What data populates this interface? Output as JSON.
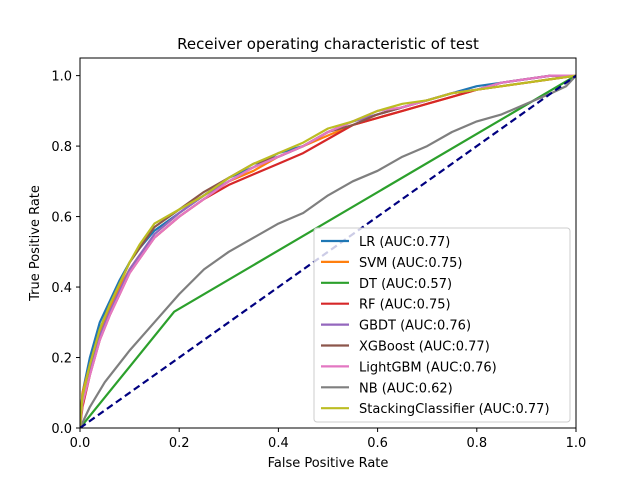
{
  "chart_data": {
    "type": "line",
    "title": "Receiver operating characteristic of test",
    "xlabel": "False Positive Rate",
    "ylabel": "True Positive Rate",
    "xlim": [
      0,
      1
    ],
    "ylim": [
      0,
      1.05
    ],
    "x_ticks": [
      "0.0",
      "0.2",
      "0.4",
      "0.6",
      "0.8",
      "1.0"
    ],
    "y_ticks": [
      "0.0",
      "0.2",
      "0.4",
      "0.6",
      "0.8",
      "1.0"
    ],
    "grid": false,
    "legend_position": "lower-right",
    "baseline": {
      "x": [
        0,
        1
      ],
      "y": [
        0,
        1
      ],
      "color": "#000080",
      "style": "dashed"
    },
    "series": [
      {
        "name": "LR (AUC:0.77)",
        "color": "#1f77b4",
        "x": [
          0,
          0.005,
          0.02,
          0.04,
          0.06,
          0.08,
          0.1,
          0.12,
          0.15,
          0.2,
          0.25,
          0.3,
          0.35,
          0.4,
          0.45,
          0.5,
          0.55,
          0.6,
          0.65,
          0.7,
          0.75,
          0.8,
          0.85,
          0.9,
          0.95,
          1.0
        ],
        "y": [
          0,
          0.1,
          0.2,
          0.3,
          0.36,
          0.42,
          0.47,
          0.51,
          0.56,
          0.61,
          0.66,
          0.71,
          0.74,
          0.78,
          0.8,
          0.84,
          0.87,
          0.89,
          0.91,
          0.93,
          0.95,
          0.97,
          0.98,
          0.99,
          1.0,
          1.0
        ]
      },
      {
        "name": "SVM (AUC:0.75)",
        "color": "#ff7f0e",
        "x": [
          0,
          0.005,
          0.02,
          0.04,
          0.06,
          0.08,
          0.1,
          0.12,
          0.15,
          0.2,
          0.25,
          0.3,
          0.35,
          0.4,
          0.45,
          0.5,
          0.55,
          0.6,
          0.65,
          0.7,
          0.75,
          0.8,
          0.85,
          0.9,
          0.95,
          1.0
        ],
        "y": [
          0,
          0.1,
          0.18,
          0.27,
          0.34,
          0.4,
          0.45,
          0.49,
          0.54,
          0.6,
          0.65,
          0.7,
          0.73,
          0.77,
          0.8,
          0.83,
          0.86,
          0.88,
          0.9,
          0.92,
          0.94,
          0.96,
          0.97,
          0.98,
          0.99,
          1.0
        ]
      },
      {
        "name": "DT (AUC:0.57)",
        "color": "#2ca02c",
        "x": [
          0,
          0.19,
          1.0
        ],
        "y": [
          0,
          0.33,
          1.0
        ]
      },
      {
        "name": "RF (AUC:0.75)",
        "color": "#d62728",
        "x": [
          0,
          0.005,
          0.02,
          0.04,
          0.06,
          0.08,
          0.1,
          0.12,
          0.15,
          0.2,
          0.25,
          0.3,
          0.35,
          0.4,
          0.45,
          0.5,
          0.55,
          0.6,
          0.65,
          0.7,
          0.75,
          0.8,
          0.85,
          0.9,
          0.95,
          1.0
        ],
        "y": [
          0,
          0.06,
          0.15,
          0.25,
          0.32,
          0.38,
          0.44,
          0.48,
          0.54,
          0.6,
          0.65,
          0.69,
          0.72,
          0.75,
          0.78,
          0.82,
          0.86,
          0.88,
          0.9,
          0.92,
          0.94,
          0.96,
          0.97,
          0.98,
          0.99,
          1.0
        ]
      },
      {
        "name": "GBDT (AUC:0.76)",
        "color": "#9467bd",
        "x": [
          0,
          0.005,
          0.02,
          0.04,
          0.06,
          0.08,
          0.1,
          0.12,
          0.15,
          0.2,
          0.25,
          0.3,
          0.35,
          0.4,
          0.45,
          0.5,
          0.55,
          0.6,
          0.65,
          0.7,
          0.75,
          0.8,
          0.85,
          0.9,
          0.95,
          1.0
        ],
        "y": [
          0,
          0.08,
          0.17,
          0.26,
          0.33,
          0.39,
          0.45,
          0.49,
          0.55,
          0.61,
          0.66,
          0.7,
          0.74,
          0.77,
          0.8,
          0.84,
          0.87,
          0.89,
          0.91,
          0.93,
          0.95,
          0.96,
          0.98,
          0.99,
          1.0,
          1.0
        ]
      },
      {
        "name": "XGBoost (AUC:0.77)",
        "color": "#8c564b",
        "x": [
          0,
          0.005,
          0.02,
          0.04,
          0.06,
          0.08,
          0.1,
          0.12,
          0.15,
          0.2,
          0.25,
          0.3,
          0.35,
          0.4,
          0.45,
          0.5,
          0.55,
          0.6,
          0.65,
          0.7,
          0.75,
          0.8,
          0.85,
          0.9,
          0.95,
          1.0
        ],
        "y": [
          0,
          0.08,
          0.18,
          0.28,
          0.35,
          0.41,
          0.47,
          0.51,
          0.57,
          0.62,
          0.67,
          0.71,
          0.75,
          0.77,
          0.8,
          0.84,
          0.86,
          0.89,
          0.91,
          0.93,
          0.95,
          0.96,
          0.98,
          0.99,
          1.0,
          1.0
        ]
      },
      {
        "name": "LightGBM (AUC:0.76)",
        "color": "#e377c2",
        "x": [
          0,
          0.005,
          0.02,
          0.04,
          0.06,
          0.08,
          0.1,
          0.12,
          0.15,
          0.2,
          0.25,
          0.3,
          0.35,
          0.4,
          0.45,
          0.5,
          0.55,
          0.6,
          0.65,
          0.7,
          0.75,
          0.8,
          0.85,
          0.9,
          0.95,
          1.0
        ],
        "y": [
          0,
          0.07,
          0.15,
          0.25,
          0.32,
          0.38,
          0.44,
          0.48,
          0.54,
          0.6,
          0.65,
          0.7,
          0.74,
          0.77,
          0.8,
          0.84,
          0.87,
          0.9,
          0.91,
          0.93,
          0.95,
          0.96,
          0.98,
          0.99,
          1.0,
          1.0
        ]
      },
      {
        "name": "NB (AUC:0.62)",
        "color": "#7f7f7f",
        "x": [
          0,
          0.02,
          0.05,
          0.1,
          0.15,
          0.2,
          0.25,
          0.3,
          0.35,
          0.4,
          0.45,
          0.5,
          0.55,
          0.6,
          0.65,
          0.7,
          0.75,
          0.8,
          0.85,
          0.9,
          0.95,
          0.98,
          1.0
        ],
        "y": [
          0,
          0.06,
          0.13,
          0.22,
          0.3,
          0.38,
          0.45,
          0.5,
          0.54,
          0.58,
          0.61,
          0.66,
          0.7,
          0.73,
          0.77,
          0.8,
          0.84,
          0.87,
          0.89,
          0.92,
          0.95,
          0.97,
          1.0
        ]
      },
      {
        "name": "StackingClassifier (AUC:0.77)",
        "color": "#bcbd22",
        "x": [
          0,
          0.005,
          0.02,
          0.04,
          0.06,
          0.08,
          0.1,
          0.12,
          0.15,
          0.2,
          0.25,
          0.3,
          0.35,
          0.4,
          0.45,
          0.5,
          0.55,
          0.6,
          0.65,
          0.7,
          0.75,
          0.8,
          0.85,
          0.9,
          0.95,
          1.0
        ],
        "y": [
          0,
          0.09,
          0.18,
          0.28,
          0.35,
          0.41,
          0.47,
          0.52,
          0.58,
          0.62,
          0.66,
          0.71,
          0.75,
          0.78,
          0.81,
          0.85,
          0.87,
          0.9,
          0.92,
          0.93,
          0.95,
          0.96,
          0.97,
          0.98,
          0.99,
          1.0
        ]
      }
    ]
  }
}
